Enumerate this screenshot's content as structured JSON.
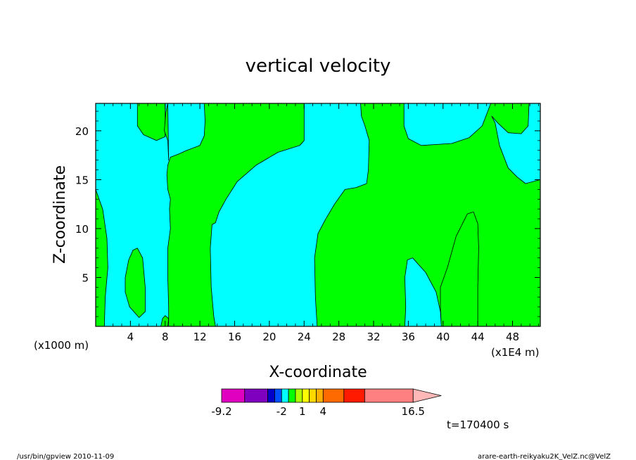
{
  "chart_data": {
    "type": "heatmap",
    "title": "vertical velocity",
    "xlabel": "X-coordinate",
    "ylabel": "Z-coordinate",
    "x_scale_label": "(x1E4 m)",
    "y_scale_label": "(x1000 m)",
    "xlim": [
      0,
      51.2
    ],
    "ylim": [
      0,
      22.8
    ],
    "x_ticks": [
      4,
      8,
      12,
      16,
      20,
      24,
      28,
      32,
      36,
      40,
      44,
      48
    ],
    "y_ticks": [
      5,
      10,
      15,
      20
    ],
    "time_label": "t=170400 s",
    "colors": {
      "positive": "#00ff00",
      "negative": "#00ffff",
      "contour": "#000000"
    },
    "regions": [
      {
        "sign": "positive",
        "polygon": [
          [
            0,
            14
          ],
          [
            0.8,
            12
          ],
          [
            1.3,
            9
          ],
          [
            1.4,
            6
          ],
          [
            1.1,
            3
          ],
          [
            1.0,
            0
          ],
          [
            0,
            0
          ]
        ]
      },
      {
        "sign": "positive",
        "polygon": [
          [
            4.8,
            8
          ],
          [
            5.4,
            7
          ],
          [
            5.7,
            4
          ],
          [
            5.7,
            1.5
          ],
          [
            5.0,
            0.9
          ],
          [
            3.9,
            2
          ],
          [
            3.4,
            3.5
          ],
          [
            3.4,
            5
          ],
          [
            3.8,
            6.8
          ],
          [
            4.3,
            7.8
          ]
        ]
      },
      {
        "sign": "positive",
        "polygon": [
          [
            7.5,
            0
          ],
          [
            7.7,
            0.8
          ],
          [
            8.0,
            1.1
          ],
          [
            8.4,
            0.8
          ],
          [
            8.3,
            0
          ]
        ]
      },
      {
        "sign": "positive",
        "polygon": [
          [
            4.8,
            22.8
          ],
          [
            4.8,
            20.5
          ],
          [
            5.5,
            19.6
          ],
          [
            7.0,
            19.0
          ],
          [
            8.0,
            19.4
          ],
          [
            8.0,
            22.8
          ]
        ]
      },
      {
        "sign": "positive",
        "polygon": [
          [
            8.3,
            22.8
          ],
          [
            8.1,
            22
          ],
          [
            7.9,
            20
          ],
          [
            8.3,
            19
          ],
          [
            8.4,
            17
          ]
        ]
      },
      {
        "sign": "positive",
        "polygon": [
          [
            8.4,
            0
          ],
          [
            8.4,
            2
          ],
          [
            8.3,
            5
          ],
          [
            8.3,
            8
          ],
          [
            8.6,
            10
          ],
          [
            8.5,
            12
          ],
          [
            8.6,
            13
          ],
          [
            8.3,
            14
          ],
          [
            8.2,
            15.5
          ],
          [
            8.3,
            16.5
          ],
          [
            8.6,
            17.3
          ],
          [
            9.5,
            17.6
          ],
          [
            10.5,
            18
          ],
          [
            12.0,
            18.5
          ],
          [
            12.5,
            19.5
          ],
          [
            12.6,
            21
          ],
          [
            12.5,
            22.8
          ],
          [
            24.0,
            22.8
          ],
          [
            24.0,
            19
          ],
          [
            23.5,
            18.5
          ],
          [
            21,
            17.8
          ],
          [
            18.5,
            16.5
          ],
          [
            16.3,
            14.8
          ],
          [
            15.0,
            13
          ],
          [
            14.2,
            11.7
          ],
          [
            13.8,
            10.6
          ],
          [
            13.4,
            10.4
          ],
          [
            13.2,
            8
          ],
          [
            13.3,
            4
          ],
          [
            13.6,
            1
          ],
          [
            13.8,
            0
          ]
        ]
      },
      {
        "sign": "positive",
        "polygon": [
          [
            30.5,
            22.8
          ],
          [
            30.6,
            21.5
          ],
          [
            31,
            20.5
          ],
          [
            31.5,
            19
          ],
          [
            31.4,
            16
          ],
          [
            31.2,
            14.6
          ],
          [
            30,
            14.2
          ],
          [
            28.7,
            14
          ],
          [
            27.5,
            12.5
          ],
          [
            26.5,
            11
          ],
          [
            25.6,
            9.5
          ],
          [
            25.2,
            7
          ],
          [
            25.3,
            3
          ],
          [
            25.5,
            0
          ],
          [
            35.6,
            0
          ],
          [
            35.7,
            2
          ],
          [
            35.6,
            5
          ],
          [
            35.9,
            6.8
          ],
          [
            36.5,
            7
          ],
          [
            38,
            5.5
          ],
          [
            39.2,
            3.5
          ],
          [
            39.7,
            1.5
          ],
          [
            39.8,
            0
          ],
          [
            44.0,
            0
          ],
          [
            44.0,
            4
          ],
          [
            44.1,
            8
          ],
          [
            44.0,
            10.5
          ],
          [
            43.5,
            11.7
          ],
          [
            42.8,
            11.5
          ],
          [
            41.5,
            9.2
          ],
          [
            40.5,
            6
          ],
          [
            39.7,
            4
          ],
          [
            39.7,
            2
          ],
          [
            39.8,
            0
          ],
          [
            51.2,
            0
          ],
          [
            51.2,
            15
          ],
          [
            49.5,
            14.6
          ],
          [
            48.5,
            15.3
          ],
          [
            47.5,
            16.2
          ],
          [
            46.5,
            18.5
          ],
          [
            46.0,
            20.8
          ],
          [
            45.6,
            21.5
          ],
          [
            46.3,
            20.8
          ],
          [
            47.5,
            19.8
          ],
          [
            49,
            19.7
          ],
          [
            49.8,
            20.5
          ],
          [
            49.9,
            22.8
          ],
          [
            45.5,
            22.8
          ],
          [
            44.5,
            20.5
          ],
          [
            43,
            19.3
          ],
          [
            41,
            18.7
          ],
          [
            37.5,
            18.5
          ],
          [
            36,
            19.2
          ],
          [
            35.5,
            20.5
          ],
          [
            35.5,
            22.8
          ]
        ]
      }
    ],
    "colorbar": {
      "labels": [
        "-9.2",
        "-2",
        "1",
        "4",
        "16.5"
      ],
      "label_values": [
        -9.2,
        -2,
        1,
        4,
        16.5
      ],
      "bins": [
        {
          "from": -9.2,
          "to": -7.0,
          "color": "#e000c0"
        },
        {
          "from": -7.0,
          "to": -4.9,
          "color": "#8000c0"
        },
        {
          "from": -4.9,
          "to": -3.3,
          "color": "#0000c8"
        },
        {
          "from": -3.3,
          "to": -2.0,
          "color": "#0050ff"
        },
        {
          "from": -2.0,
          "to": -1.0,
          "color": "#00ffff"
        },
        {
          "from": -1.0,
          "to": 0.0,
          "color": "#00ff00"
        },
        {
          "from": 0.0,
          "to": 1.0,
          "color": "#b0ff00"
        },
        {
          "from": 1.0,
          "to": 2.0,
          "color": "#ffff00"
        },
        {
          "from": 2.0,
          "to": 3.0,
          "color": "#ffd800"
        },
        {
          "from": 3.0,
          "to": 4.0,
          "color": "#ffb000"
        },
        {
          "from": 4.0,
          "to": 6.5,
          "color": "#ff6a00"
        },
        {
          "from": 6.5,
          "to": 9.0,
          "color": "#ff1a00"
        },
        {
          "from": 9.0,
          "to": 16.5,
          "color": "#ff8080"
        }
      ],
      "overflow_color": "#ffb8b8"
    }
  },
  "footer": {
    "left": "/usr/bin/gpview   2010-11-09",
    "right": "arare-earth-reikyaku2K_VelZ.nc@VelZ"
  }
}
